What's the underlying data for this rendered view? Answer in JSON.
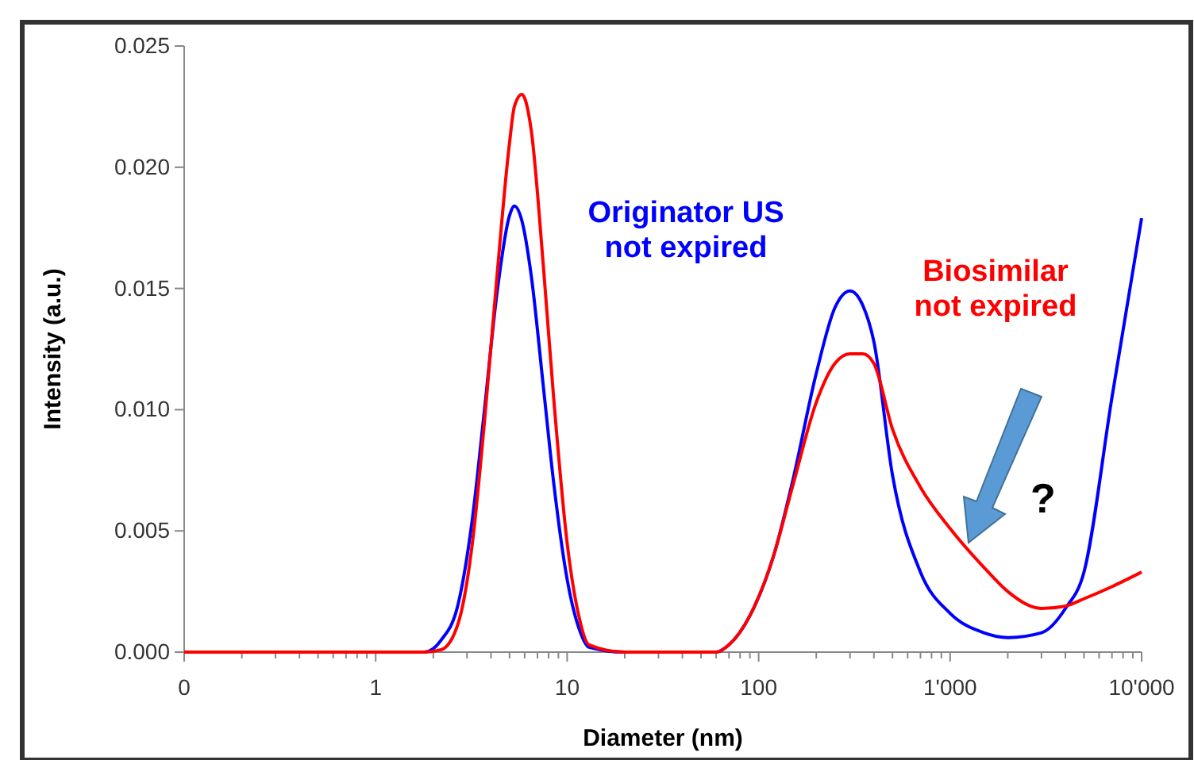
{
  "chart_data": {
    "type": "line",
    "xlabel": "Diameter (nm)",
    "ylabel": "Intensity (a.u.)",
    "log": "x",
    "grid": false,
    "legend": false,
    "marker": "none",
    "line_style": "solid",
    "xlim": [
      0.1,
      10000
    ],
    "ylim": [
      0,
      0.025
    ],
    "xticks": [
      {
        "value": 0.1,
        "label": "0"
      },
      {
        "value": 0.2,
        "label": null
      },
      {
        "value": 0.3,
        "label": null
      },
      {
        "value": 0.4,
        "label": null
      },
      {
        "value": 0.5,
        "label": null
      },
      {
        "value": 0.6,
        "label": null
      },
      {
        "value": 0.7,
        "label": null
      },
      {
        "value": 0.8,
        "label": null
      },
      {
        "value": 0.9,
        "label": null
      },
      1,
      {
        "value": 2,
        "label": null
      },
      {
        "value": 3,
        "label": null
      },
      {
        "value": 4,
        "label": null
      },
      {
        "value": 5,
        "label": null
      },
      {
        "value": 6,
        "label": null
      },
      {
        "value": 7,
        "label": null
      },
      {
        "value": 8,
        "label": null
      },
      {
        "value": 9,
        "label": null
      },
      10,
      {
        "value": 20,
        "label": null
      },
      {
        "value": 30,
        "label": null
      },
      {
        "value": 40,
        "label": null
      },
      {
        "value": 50,
        "label": null
      },
      {
        "value": 60,
        "label": null
      },
      {
        "value": 70,
        "label": null
      },
      {
        "value": 80,
        "label": null
      },
      {
        "value": 90,
        "label": null
      },
      100,
      {
        "value": 200,
        "label": null
      },
      {
        "value": 300,
        "label": null
      },
      {
        "value": 400,
        "label": null
      },
      {
        "value": 500,
        "label": null
      },
      {
        "value": 600,
        "label": null
      },
      {
        "value": 700,
        "label": null
      },
      {
        "value": 800,
        "label": null
      },
      {
        "value": 900,
        "label": null
      },
      {
        "value": 1000,
        "label": "1'000"
      },
      {
        "value": 2000,
        "label": null
      },
      {
        "value": 3000,
        "label": null
      },
      {
        "value": 4000,
        "label": null
      },
      {
        "value": 5000,
        "label": null
      },
      {
        "value": 6000,
        "label": null
      },
      {
        "value": 7000,
        "label": null
      },
      {
        "value": 8000,
        "label": null
      },
      {
        "value": 9000,
        "label": null
      },
      {
        "value": 10000,
        "label": "10'000"
      }
    ],
    "yticks": [
      {
        "value": 0,
        "label": "0.000"
      },
      {
        "value": 0.005,
        "label": "0.005"
      },
      {
        "value": 0.01,
        "label": "0.010"
      },
      {
        "value": 0.015,
        "label": "0.015"
      },
      {
        "value": 0.02,
        "label": "0.020"
      },
      {
        "value": 0.025,
        "label": "0.025"
      }
    ],
    "x": [
      0.1,
      1,
      1.8,
      2.2,
      2.7,
      3.2,
      3.7,
      4.3,
      5,
      5.3,
      5.8,
      6.5,
      7.5,
      8.5,
      10,
      11.5,
      13,
      20,
      50,
      60,
      70,
      90,
      120,
      150,
      200,
      250,
      300,
      350,
      400,
      500,
      700,
      1000,
      1500,
      2000,
      3000,
      4000,
      5000,
      7000,
      10000
    ],
    "series": [
      {
        "name": "Originator US\nnot expired",
        "color": "#0000ff",
        "values": [
          0,
          0,
          0,
          0.0005,
          0.002,
          0.0055,
          0.01,
          0.0148,
          0.018,
          0.0184,
          0.0178,
          0.0155,
          0.011,
          0.007,
          0.003,
          0.001,
          0.0002,
          0,
          0,
          0,
          0.0003,
          0.0015,
          0.004,
          0.007,
          0.0115,
          0.0142,
          0.0149,
          0.0143,
          0.0128,
          0.0073,
          0.0033,
          0.0016,
          0.0008,
          0.0006,
          0.0008,
          0.0018,
          0.0033,
          0.0105,
          0.0179
        ]
      },
      {
        "name": "Biosimilar\nnot expired",
        "color": "#ff0000",
        "values": [
          0,
          0,
          0,
          0.0001,
          0.0012,
          0.0045,
          0.0095,
          0.0155,
          0.021,
          0.0225,
          0.023,
          0.0215,
          0.016,
          0.0105,
          0.0045,
          0.0015,
          0.0003,
          0,
          0,
          0,
          0.0003,
          0.0015,
          0.004,
          0.0068,
          0.0103,
          0.0119,
          0.0123,
          0.0123,
          0.0119,
          0.0092,
          0.0068,
          0.0051,
          0.0035,
          0.0025,
          0.0018,
          0.0019,
          0.0022,
          0.0027,
          0.0033
        ]
      }
    ],
    "annotations": [
      "?"
    ]
  }
}
